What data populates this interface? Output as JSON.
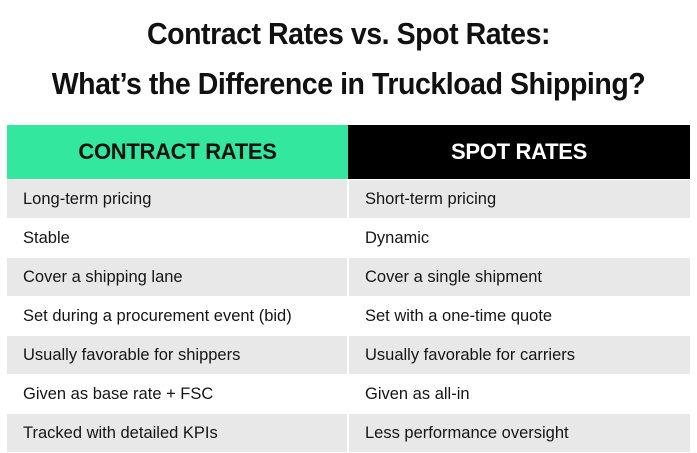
{
  "title": {
    "line1": "Contract Rates vs. Spot Rates:",
    "line2": "What’s the Difference in Truckload Shipping?"
  },
  "table": {
    "headers": {
      "contract": "CONTRACT RATES",
      "spot": "SPOT RATES"
    },
    "header_colors": {
      "contract_bg": "#33e89e",
      "spot_bg": "#000000",
      "row_shade": "#e8e8e8"
    },
    "rows": [
      {
        "contract": "Long-term pricing",
        "spot": "Short-term pricing"
      },
      {
        "contract": "Stable",
        "spot": "Dynamic"
      },
      {
        "contract": "Cover a shipping lane",
        "spot": "Cover a single shipment"
      },
      {
        "contract": "Set during a procurement event (bid)",
        "spot": "Set with a one-time quote"
      },
      {
        "contract": "Usually favorable for shippers",
        "spot": "Usually favorable for carriers"
      },
      {
        "contract": "Given as base rate + FSC",
        "spot": "Given as all-in"
      },
      {
        "contract": "Tracked with detailed KPIs",
        "spot": "Less performance oversight"
      }
    ]
  }
}
